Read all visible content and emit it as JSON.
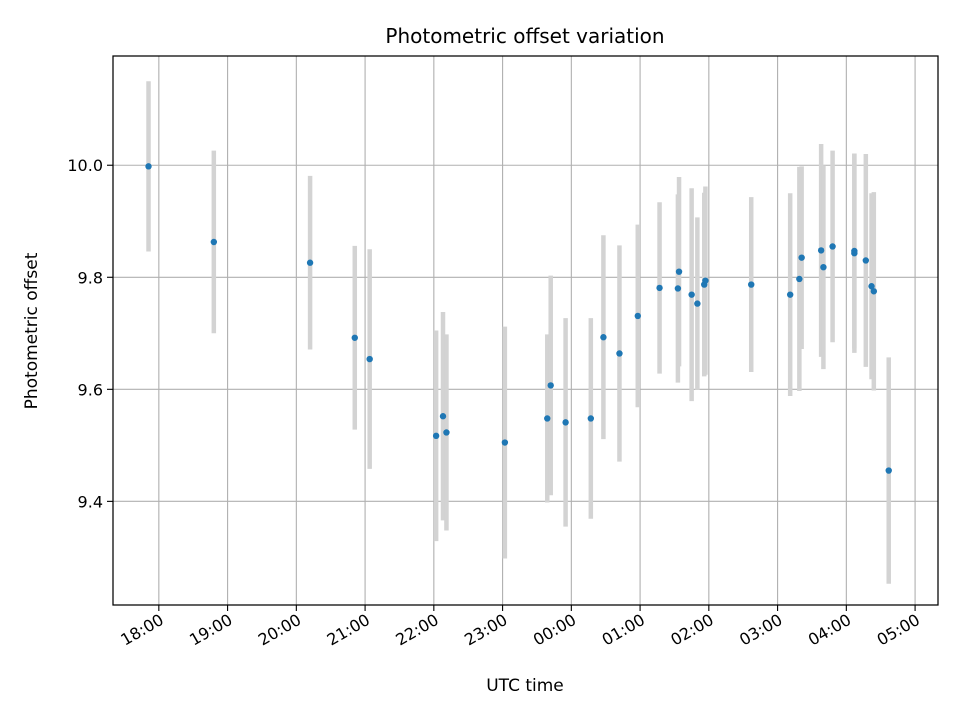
{
  "chart_data": {
    "type": "scatter",
    "title": "Photometric offset variation",
    "xlabel": "UTC time",
    "ylabel": "Photometric offset",
    "x_tick_labels": [
      "18:00",
      "19:00",
      "20:00",
      "21:00",
      "22:00",
      "23:00",
      "00:00",
      "01:00",
      "02:00",
      "03:00",
      "04:00",
      "05:00"
    ],
    "y_tick_labels": [
      "9.4",
      "9.6",
      "9.8",
      "10.0"
    ],
    "y_ticks": [
      9.4,
      9.6,
      9.8,
      10.0
    ],
    "ylim": [
      9.215,
      10.195
    ],
    "xlim": [
      "17:20",
      "05:20"
    ],
    "grid": true,
    "colors": {
      "point": "#1f77b4",
      "errorbar": "#d3d3d3",
      "grid": "#b0b0b0"
    },
    "series": [
      {
        "points": [
          {
            "x": "17:51",
            "y": 9.998,
            "err": 0.152
          },
          {
            "x": "18:48",
            "y": 9.863,
            "err": 0.163
          },
          {
            "x": "20:12",
            "y": 9.826,
            "err": 0.155
          },
          {
            "x": "20:51",
            "y": 9.692,
            "err": 0.164
          },
          {
            "x": "21:04",
            "y": 9.654,
            "err": 0.196
          },
          {
            "x": "22:02",
            "y": 9.517,
            "err": 0.188
          },
          {
            "x": "22:08",
            "y": 9.552,
            "err": 0.186
          },
          {
            "x": "22:11",
            "y": 9.523,
            "err": 0.175
          },
          {
            "x": "23:02",
            "y": 9.505,
            "err": 0.207
          },
          {
            "x": "23:39",
            "y": 9.548,
            "err": 0.15
          },
          {
            "x": "23:42",
            "y": 9.607,
            "err": 0.196
          },
          {
            "x": "23:55",
            "y": 9.541,
            "err": 0.186
          },
          {
            "x": "00:17",
            "y": 9.548,
            "err": 0.179
          },
          {
            "x": "00:28",
            "y": 9.693,
            "err": 0.182
          },
          {
            "x": "00:42",
            "y": 9.664,
            "err": 0.193
          },
          {
            "x": "00:58",
            "y": 9.731,
            "err": 0.163
          },
          {
            "x": "01:17",
            "y": 9.781,
            "err": 0.153
          },
          {
            "x": "01:33",
            "y": 9.78,
            "err": 0.168
          },
          {
            "x": "01:34",
            "y": 9.81,
            "err": 0.169
          },
          {
            "x": "01:45",
            "y": 9.769,
            "err": 0.19
          },
          {
            "x": "01:50",
            "y": 9.753,
            "err": 0.154
          },
          {
            "x": "01:56",
            "y": 9.787,
            "err": 0.164
          },
          {
            "x": "01:57",
            "y": 9.794,
            "err": 0.168
          },
          {
            "x": "02:37",
            "y": 9.787,
            "err": 0.156
          },
          {
            "x": "03:11",
            "y": 9.769,
            "err": 0.181
          },
          {
            "x": "03:19",
            "y": 9.797,
            "err": 0.2
          },
          {
            "x": "03:21",
            "y": 9.835,
            "err": 0.163
          },
          {
            "x": "03:38",
            "y": 9.848,
            "err": 0.19
          },
          {
            "x": "03:40",
            "y": 9.818,
            "err": 0.182
          },
          {
            "x": "03:48",
            "y": 9.855,
            "err": 0.171
          },
          {
            "x": "04:07",
            "y": 9.847,
            "err": 0.174
          },
          {
            "x": "04:07",
            "y": 9.843,
            "err": 0.178
          },
          {
            "x": "04:17",
            "y": 9.83,
            "err": 0.19
          },
          {
            "x": "04:22",
            "y": 9.784,
            "err": 0.166
          },
          {
            "x": "04:24",
            "y": 9.775,
            "err": 0.177
          },
          {
            "x": "04:37",
            "y": 9.455,
            "err": 0.202
          }
        ]
      }
    ]
  }
}
